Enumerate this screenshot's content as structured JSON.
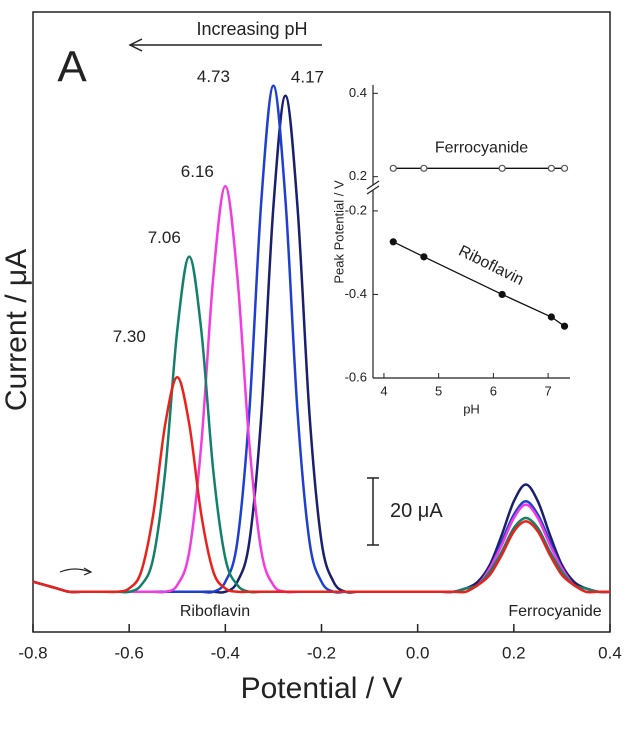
{
  "chart_data": [
    {
      "type": "line",
      "panel_label": "A",
      "x_label": "Potential / V",
      "y_label": "Current / μA",
      "annotation": "Increasing pH",
      "peak_labels": [
        "Riboflavin",
        "Ferrocyanide"
      ],
      "scale_bar": {
        "value": 20,
        "label": "20 μA"
      },
      "xlim": [
        -0.8,
        0.4
      ],
      "ylim": [
        0,
        185
      ],
      "xticks": [
        -0.8,
        -0.6,
        -0.4,
        -0.2,
        {
          "value": 0,
          "label": "0.0"
        },
        0.2,
        0.4
      ],
      "x": [
        -0.8,
        -0.775,
        -0.75,
        -0.725,
        -0.7,
        -0.675,
        -0.65,
        -0.625,
        -0.6,
        -0.575,
        -0.55,
        -0.525,
        -0.5,
        -0.475,
        -0.45,
        -0.425,
        -0.4,
        -0.375,
        -0.35,
        -0.325,
        -0.3,
        -0.275,
        -0.25,
        -0.225,
        -0.2,
        -0.175,
        -0.15,
        -0.125,
        -0.1,
        -0.075,
        -0.05,
        -0.025,
        0,
        0.025,
        0.05,
        0.075,
        0.1,
        0.125,
        0.15,
        0.175,
        0.2,
        0.225,
        0.25,
        0.275,
        0.3,
        0.325,
        0.35,
        0.375,
        0.4
      ],
      "series": [
        {
          "name": "4.17",
          "color": "#1a1f6e",
          "values": [
            15,
            14,
            13,
            12,
            12,
            12,
            12,
            12,
            12,
            12,
            12,
            12,
            12,
            12,
            12,
            12,
            12,
            15,
            27,
            65,
            127,
            160,
            127,
            65,
            27,
            15,
            12,
            12,
            12,
            12,
            12,
            12,
            12,
            12,
            12,
            12,
            13,
            15,
            20,
            29,
            39,
            44,
            39,
            29,
            20,
            15,
            13,
            12,
            12
          ]
        },
        {
          "name": "4.73",
          "color": "#1f3fd0",
          "values": [
            15,
            14,
            13,
            12,
            12,
            12,
            12,
            12,
            12,
            12,
            12,
            12,
            12,
            12,
            12,
            12,
            15,
            27,
            66,
            129,
            163,
            129,
            66,
            27,
            15,
            12,
            12,
            12,
            12,
            12,
            12,
            12,
            12,
            12,
            12,
            12,
            13,
            14,
            19,
            27,
            35,
            39,
            35,
            27,
            19,
            14,
            13,
            12,
            12
          ]
        },
        {
          "name": "6.16",
          "color": "#f23ce0",
          "values": [
            15,
            14,
            13,
            12,
            12,
            12,
            12,
            12,
            12,
            12,
            12,
            12,
            14,
            24,
            56,
            106,
            133,
            106,
            56,
            24,
            14,
            12,
            12,
            12,
            12,
            12,
            12,
            12,
            12,
            12,
            12,
            12,
            12,
            12,
            12,
            12,
            13,
            14,
            19,
            26,
            34,
            38,
            34,
            26,
            19,
            14,
            13,
            12,
            12
          ]
        },
        {
          "name": "7.06",
          "color": "#12806a",
          "values": [
            15,
            14,
            13,
            12,
            12,
            12,
            12,
            12,
            12,
            14,
            22,
            48,
            90,
            112,
            90,
            48,
            22,
            14,
            12,
            12,
            12,
            12,
            12,
            12,
            12,
            12,
            12,
            12,
            12,
            12,
            12,
            12,
            12,
            12,
            12,
            12,
            13,
            14,
            18,
            24,
            31,
            34,
            31,
            24,
            18,
            14,
            13,
            12,
            12
          ]
        },
        {
          "name": "7.30",
          "color": "#e8231c",
          "values": [
            15,
            14,
            13,
            12,
            12,
            12,
            12,
            12,
            13,
            18,
            35,
            62,
            76,
            62,
            35,
            18,
            13,
            12,
            12,
            12,
            12,
            12,
            12,
            12,
            12,
            12,
            12,
            12,
            12,
            12,
            12,
            12,
            12,
            12,
            12,
            12,
            12,
            14,
            17,
            23,
            30,
            33,
            30,
            23,
            17,
            14,
            12,
            12,
            12
          ]
        }
      ]
    },
    {
      "type": "scatter",
      "x_label": "pH",
      "y_label": "Peak Potential / V",
      "xlim": [
        3.8,
        7.4
      ],
      "xticks": [
        4,
        5,
        6,
        7
      ],
      "ylim": [
        -0.6,
        -0.15
      ],
      "yticks": [
        -0.6,
        -0.4,
        -0.2
      ],
      "ylim_upper": [
        0.18,
        0.42
      ],
      "yticks_upper": [
        0.2,
        0.4
      ],
      "x": [
        4.17,
        4.73,
        6.16,
        7.06,
        7.3
      ],
      "series": [
        {
          "name": "Ferrocyanide",
          "color": "#555555",
          "values": [
            0.22,
            0.22,
            0.22,
            0.22,
            0.22
          ]
        },
        {
          "name": "Riboflavin",
          "color": "#111111",
          "values": [
            -0.274,
            -0.31,
            -0.4,
            -0.454,
            -0.476
          ]
        }
      ]
    }
  ]
}
